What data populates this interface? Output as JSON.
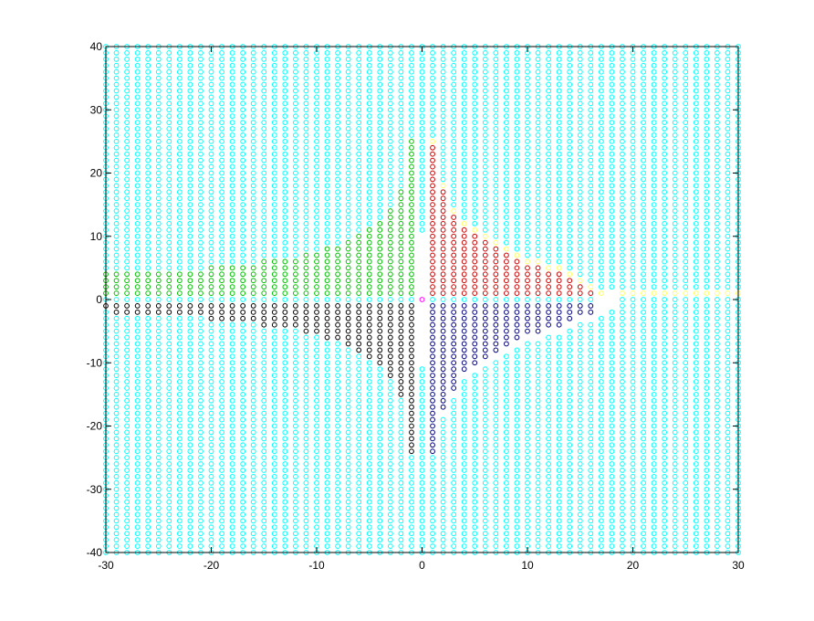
{
  "chart_data": {
    "type": "scatter",
    "marker": "circle",
    "grid": false,
    "xlim": [
      -30,
      30
    ],
    "ylim": [
      -40,
      40
    ],
    "x_ticks": [
      -30,
      -20,
      -10,
      0,
      10,
      20,
      30
    ],
    "y_ticks": [
      -40,
      -30,
      -20,
      -10,
      0,
      10,
      20,
      30,
      40
    ],
    "x_tick_labels": [
      "-30",
      "-20",
      "-10",
      "0",
      "10",
      "20",
      "30"
    ],
    "y_tick_labels": [
      "-40",
      "-30",
      "-20",
      "-10",
      "0",
      "10",
      "20",
      "30",
      "40"
    ],
    "point_grid": {
      "x_values": "integers -30..30",
      "y_values": "integers -40..40"
    },
    "series": [
      {
        "color": "#00ffff",
        "role": "background",
        "description": "all remaining lattice points"
      },
      {
        "color": "#00c000",
        "region": "x<0, y>0",
        "column_heights": [
          {
            "x": -30,
            "ymax": 4
          },
          {
            "x": -29,
            "ymax": 4
          },
          {
            "x": -28,
            "ymax": 4
          },
          {
            "x": -27,
            "ymax": 4
          },
          {
            "x": -26,
            "ymax": 4
          },
          {
            "x": -25,
            "ymax": 4
          },
          {
            "x": -24,
            "ymax": 4
          },
          {
            "x": -23,
            "ymax": 4
          },
          {
            "x": -22,
            "ymax": 4
          },
          {
            "x": -21,
            "ymax": 4
          },
          {
            "x": -20,
            "ymax": 5
          },
          {
            "x": -19,
            "ymax": 5
          },
          {
            "x": -18,
            "ymax": 5
          },
          {
            "x": -17,
            "ymax": 5
          },
          {
            "x": -16,
            "ymax": 5
          },
          {
            "x": -15,
            "ymax": 6
          },
          {
            "x": -14,
            "ymax": 6
          },
          {
            "x": -13,
            "ymax": 6
          },
          {
            "x": -12,
            "ymax": 6
          },
          {
            "x": -11,
            "ymax": 7
          },
          {
            "x": -10,
            "ymax": 7
          },
          {
            "x": -9,
            "ymax": 8
          },
          {
            "x": -8,
            "ymax": 8
          },
          {
            "x": -7,
            "ymax": 9
          },
          {
            "x": -6,
            "ymax": 10
          },
          {
            "x": -5,
            "ymax": 11
          },
          {
            "x": -4,
            "ymax": 12
          },
          {
            "x": -3,
            "ymax": 14
          },
          {
            "x": -2,
            "ymax": 17
          },
          {
            "x": -1,
            "ymax": 25
          }
        ]
      },
      {
        "color": "#000000",
        "region": "x<0, y<0",
        "column_depths": [
          {
            "x": -30,
            "ymin": -1
          },
          {
            "x": -29,
            "ymin": -2
          },
          {
            "x": -28,
            "ymin": -2
          },
          {
            "x": -27,
            "ymin": -2
          },
          {
            "x": -26,
            "ymin": -2
          },
          {
            "x": -25,
            "ymin": -2
          },
          {
            "x": -24,
            "ymin": -2
          },
          {
            "x": -23,
            "ymin": -2
          },
          {
            "x": -22,
            "ymin": -2
          },
          {
            "x": -21,
            "ymin": -2
          },
          {
            "x": -20,
            "ymin": -3
          },
          {
            "x": -19,
            "ymin": -3
          },
          {
            "x": -18,
            "ymin": -3
          },
          {
            "x": -17,
            "ymin": -3
          },
          {
            "x": -16,
            "ymin": -3
          },
          {
            "x": -15,
            "ymin": -4
          },
          {
            "x": -14,
            "ymin": -4
          },
          {
            "x": -13,
            "ymin": -4
          },
          {
            "x": -12,
            "ymin": -4
          },
          {
            "x": -11,
            "ymin": -5
          },
          {
            "x": -10,
            "ymin": -5
          },
          {
            "x": -9,
            "ymin": -6
          },
          {
            "x": -8,
            "ymin": -6
          },
          {
            "x": -7,
            "ymin": -7
          },
          {
            "x": -6,
            "ymin": -8
          },
          {
            "x": -5,
            "ymin": -9
          },
          {
            "x": -4,
            "ymin": -10
          },
          {
            "x": -3,
            "ymin": -12
          },
          {
            "x": -2,
            "ymin": -15
          },
          {
            "x": -1,
            "ymin": -24
          }
        ]
      },
      {
        "color": "#cc0000",
        "region": "x>0, y>0",
        "column_heights": [
          {
            "x": 1,
            "ymax": 24
          },
          {
            "x": 2,
            "ymax": 17
          },
          {
            "x": 3,
            "ymax": 13
          },
          {
            "x": 4,
            "ymax": 11
          },
          {
            "x": 5,
            "ymax": 10
          },
          {
            "x": 6,
            "ymax": 9
          },
          {
            "x": 7,
            "ymax": 8
          },
          {
            "x": 8,
            "ymax": 7
          },
          {
            "x": 9,
            "ymax": 6
          },
          {
            "x": 10,
            "ymax": 5
          },
          {
            "x": 11,
            "ymax": 5
          },
          {
            "x": 12,
            "ymax": 4
          },
          {
            "x": 13,
            "ymax": 4
          },
          {
            "x": 14,
            "ymax": 3
          },
          {
            "x": 15,
            "ymax": 2
          },
          {
            "x": 16,
            "ymax": 1
          }
        ]
      },
      {
        "color": "#000080",
        "region": "x>0, y<0",
        "column_depths": [
          {
            "x": 1,
            "ymin": -24
          },
          {
            "x": 2,
            "ymin": -17
          },
          {
            "x": 3,
            "ymin": -14
          },
          {
            "x": 4,
            "ymin": -11
          },
          {
            "x": 5,
            "ymin": -10
          },
          {
            "x": 6,
            "ymin": -9
          },
          {
            "x": 7,
            "ymin": -8
          },
          {
            "x": 8,
            "ymin": -7
          },
          {
            "x": 9,
            "ymin": -6
          },
          {
            "x": 10,
            "ymin": -5
          },
          {
            "x": 11,
            "ymin": -5
          },
          {
            "x": 12,
            "ymin": -4
          },
          {
            "x": 13,
            "ymin": -4
          },
          {
            "x": 14,
            "ymin": -3
          },
          {
            "x": 15,
            "ymin": -2
          },
          {
            "x": 16,
            "ymin": -2
          }
        ]
      },
      {
        "color": "#ffff66",
        "region": "boundary above red region and positive x-axis",
        "points": [
          {
            "x": 1,
            "y": 25
          },
          {
            "x": 2,
            "y": 18
          },
          {
            "x": 3,
            "y": 14
          },
          {
            "x": 4,
            "y": 12
          },
          {
            "x": 5,
            "y": 11
          },
          {
            "x": 6,
            "y": 10
          },
          {
            "x": 7,
            "y": 9
          },
          {
            "x": 8,
            "y": 8
          },
          {
            "x": 9,
            "y": 7
          },
          {
            "x": 10,
            "y": 6
          },
          {
            "x": 11,
            "y": 6
          },
          {
            "x": 12,
            "y": 5
          },
          {
            "x": 13,
            "y": 5
          },
          {
            "x": 14,
            "y": 4
          },
          {
            "x": 15,
            "y": 3
          },
          {
            "x": 16,
            "y": 2
          },
          {
            "x": 17,
            "y": 1
          }
        ],
        "row_points": {
          "y": 1,
          "x_from": 18,
          "x_to": 30
        }
      },
      {
        "color": "#ffffff",
        "region": "empty gaps (no marker)",
        "points": [
          {
            "x": 0,
            "y": 1
          },
          {
            "x": 0,
            "y": 2
          },
          {
            "x": 0,
            "y": 3
          },
          {
            "x": 0,
            "y": 4
          },
          {
            "x": 0,
            "y": 5
          },
          {
            "x": 0,
            "y": 6
          },
          {
            "x": 0,
            "y": 7
          },
          {
            "x": 0,
            "y": 8
          },
          {
            "x": 0,
            "y": 9
          },
          {
            "x": 0,
            "y": 10
          },
          {
            "x": 0,
            "y": -1
          },
          {
            "x": 0,
            "y": -2
          },
          {
            "x": 0,
            "y": -3
          },
          {
            "x": 0,
            "y": -4
          },
          {
            "x": 0,
            "y": -5
          },
          {
            "x": 0,
            "y": -6
          },
          {
            "x": 0,
            "y": -7
          },
          {
            "x": 0,
            "y": -8
          },
          {
            "x": 0,
            "y": -9
          },
          {
            "x": 0,
            "y": -10
          },
          {
            "x": 2,
            "y": -18
          },
          {
            "x": 3,
            "y": -15
          },
          {
            "x": 4,
            "y": -12
          },
          {
            "x": 5,
            "y": -11
          },
          {
            "x": 6,
            "y": -10
          },
          {
            "x": 7,
            "y": -9
          },
          {
            "x": 8,
            "y": -8
          },
          {
            "x": 9,
            "y": -7
          },
          {
            "x": 10,
            "y": -6
          },
          {
            "x": 11,
            "y": -6
          },
          {
            "x": 12,
            "y": -5
          },
          {
            "x": 13,
            "y": -5
          },
          {
            "x": 14,
            "y": -4
          },
          {
            "x": 15,
            "y": -3
          },
          {
            "x": 16,
            "y": -3
          },
          {
            "x": 17,
            "y": -2
          },
          {
            "x": 17,
            "y": -1
          },
          {
            "x": 18,
            "y": -1
          },
          {
            "x": 17,
            "y": 0
          },
          {
            "x": 18,
            "y": 0
          },
          {
            "x": 18,
            "y": 1
          }
        ]
      },
      {
        "color": "#ff00ff",
        "region": "origin",
        "points": [
          {
            "x": 0,
            "y": 0
          }
        ]
      }
    ]
  }
}
